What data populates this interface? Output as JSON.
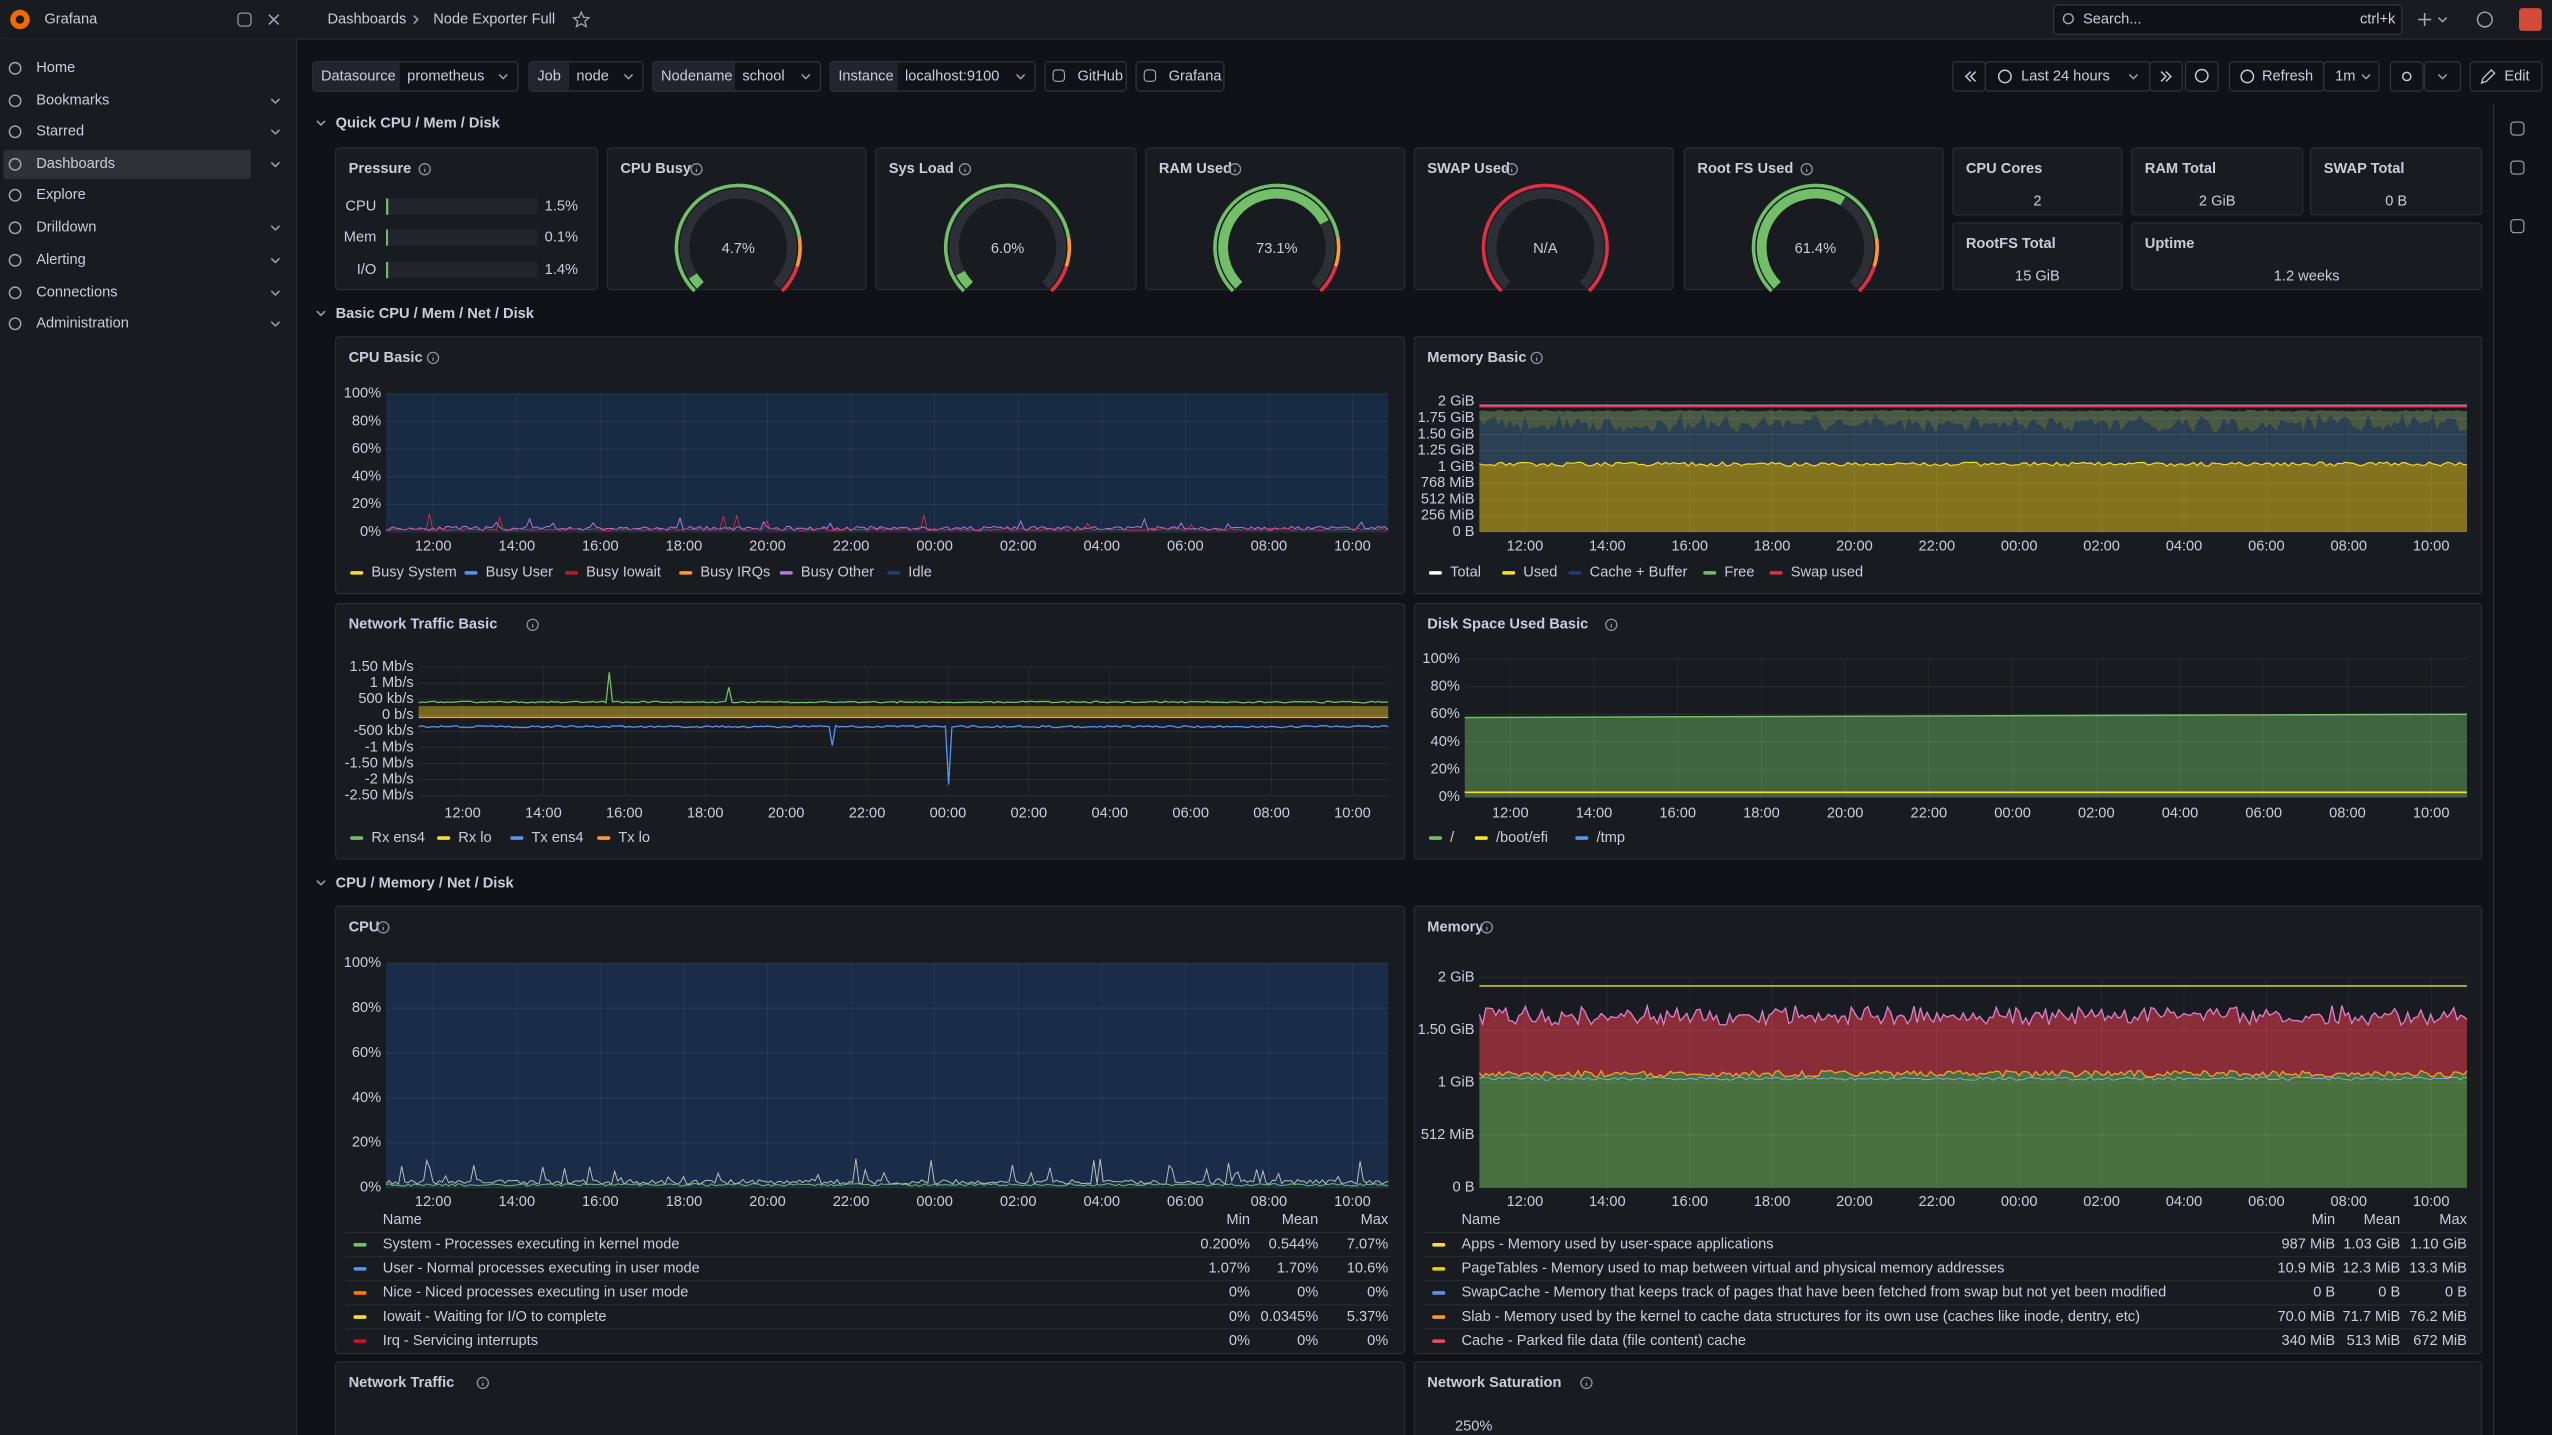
{
  "topbar": {
    "brand": "Grafana",
    "breadcrumb": [
      "Dashboards",
      "Node Exporter Full"
    ],
    "search": "Search...",
    "shortcut": "ctrl+k"
  },
  "sidebar": [
    "Home",
    "Bookmarks",
    "Starred",
    "Dashboards",
    "Explore",
    "Drilldown",
    "Alerting",
    "Connections",
    "Administration"
  ],
  "variables": [
    {
      "label": "Datasource",
      "value": "prometheus"
    },
    {
      "label": "Job",
      "value": "node"
    },
    {
      "label": "Nodename",
      "value": "school"
    },
    {
      "label": "Instance",
      "value": "localhost:9100"
    }
  ],
  "links": [
    "GitHub",
    "Grafana"
  ],
  "controls": {
    "time_range": "Last 24 hours",
    "refresh": "Refresh",
    "interval": "1m",
    "edit": "Edit"
  },
  "rows": [
    "Quick CPU / Mem / Disk",
    "Basic CPU / Mem / Net / Disk",
    "CPU / Memory / Net / Disk"
  ],
  "pressure": {
    "title": "Pressure",
    "bars": [
      {
        "name": "CPU",
        "value": 1.5,
        "label": "1.5%"
      },
      {
        "name": "Mem",
        "value": 0.1,
        "label": "0.1%"
      },
      {
        "name": "I/O",
        "value": 1.4,
        "label": "1.4%"
      }
    ]
  },
  "gauge_range": [
    0,
    100
  ],
  "gauges": [
    {
      "title": "CPU Busy",
      "value": 4.7,
      "label": "4.7%"
    },
    {
      "title": "Sys Load",
      "value": 6.0,
      "label": "6.0%"
    },
    {
      "title": "RAM Used",
      "value": 73.1,
      "label": "73.1%"
    },
    {
      "title": "SWAP Used",
      "value": null,
      "label": "N/A"
    },
    {
      "title": "Root FS Used",
      "value": 61.4,
      "label": "61.4%"
    }
  ],
  "stats": [
    {
      "title": "CPU Cores",
      "value": "2"
    },
    {
      "title": "RAM Total",
      "value": "2 GiB"
    },
    {
      "title": "SWAP Total",
      "value": "0 B"
    },
    {
      "title": "RootFS Total",
      "value": "15 GiB"
    },
    {
      "title": "Uptime",
      "value": "1.2 weeks"
    }
  ],
  "time_axis": [
    "12:00",
    "14:00",
    "16:00",
    "18:00",
    "20:00",
    "22:00",
    "00:00",
    "02:00",
    "04:00",
    "06:00",
    "08:00",
    "10:00"
  ],
  "charts": [
    {
      "title": "CPU Basic",
      "yticks": [
        "100%",
        "80%",
        "60%",
        "40%",
        "20%",
        "0%"
      ],
      "legend": [
        {
          "name": "Busy System",
          "color": "#fade2a"
        },
        {
          "name": "Busy User",
          "color": "#5794f2"
        },
        {
          "name": "Busy Iowait",
          "color": "#c4162a"
        },
        {
          "name": "Busy IRQs",
          "color": "#ff9830"
        },
        {
          "name": "Busy Other",
          "color": "#b877d9"
        },
        {
          "name": "Idle",
          "color": "#1f3f6e"
        }
      ]
    },
    {
      "title": "Memory Basic",
      "yticks": [
        "2 GiB",
        "1.75 GiB",
        "1.50 GiB",
        "1.25 GiB",
        "1 GiB",
        "768 MiB",
        "512 MiB",
        "256 MiB",
        "0 B"
      ],
      "legend": [
        {
          "name": "Total",
          "color": "#ffffff"
        },
        {
          "name": "Used",
          "color": "#fade2a"
        },
        {
          "name": "Cache + Buffer",
          "color": "#1f3f6e"
        },
        {
          "name": "Free",
          "color": "#73bf69"
        },
        {
          "name": "Swap used",
          "color": "#e02f44"
        }
      ]
    },
    {
      "title": "Network Traffic Basic",
      "yticks": [
        "1.50 Mb/s",
        "1 Mb/s",
        "500 kb/s",
        "0 b/s",
        "-500 kb/s",
        "-1 Mb/s",
        "-1.50 Mb/s",
        "-2 Mb/s",
        "-2.50 Mb/s"
      ],
      "legend": [
        {
          "name": "Rx ens4",
          "color": "#73bf69"
        },
        {
          "name": "Rx lo",
          "color": "#fade2a"
        },
        {
          "name": "Tx ens4",
          "color": "#5794f2"
        },
        {
          "name": "Tx lo",
          "color": "#ff9830"
        }
      ]
    },
    {
      "title": "Disk Space Used Basic",
      "yticks": [
        "100%",
        "80%",
        "60%",
        "40%",
        "20%",
        "0%"
      ],
      "legend": [
        {
          "name": "/",
          "color": "#73bf69"
        },
        {
          "name": "/boot/efi",
          "color": "#fade2a"
        },
        {
          "name": "/tmp",
          "color": "#5794f2"
        }
      ]
    },
    {
      "title": "CPU",
      "yticks": [
        "100%",
        "80%",
        "60%",
        "40%",
        "20%",
        "0%"
      ],
      "table": {
        "columns": [
          "Name",
          "Min",
          "Mean",
          "Max"
        ],
        "rows": [
          {
            "name": "System - Processes executing in kernel mode",
            "color": "#73bf69",
            "min": "0.200%",
            "mean": "0.544%",
            "max": "7.07%"
          },
          {
            "name": "User - Normal processes executing in user mode",
            "color": "#5794f2",
            "min": "1.07%",
            "mean": "1.70%",
            "max": "10.6%"
          },
          {
            "name": "Nice - Niced processes executing in user mode",
            "color": "#ff780a",
            "min": "0%",
            "mean": "0%",
            "max": "0%"
          },
          {
            "name": "Iowait - Waiting for I/O to complete",
            "color": "#fade2a",
            "min": "0%",
            "mean": "0.0345%",
            "max": "5.37%"
          },
          {
            "name": "Irq - Servicing interrupts",
            "color": "#c4162a",
            "min": "0%",
            "mean": "0%",
            "max": "0%"
          }
        ]
      }
    },
    {
      "title": "Memory",
      "yticks": [
        "2 GiB",
        "1.50 GiB",
        "1 GiB",
        "512 MiB",
        "0 B"
      ],
      "table": {
        "columns": [
          "Name",
          "Min",
          "Mean",
          "Max"
        ],
        "rows": [
          {
            "name": "Apps - Memory used by user-space applications",
            "color": "#fade2a",
            "min": "987 MiB",
            "mean": "1.03 GiB",
            "max": "1.10 GiB"
          },
          {
            "name": "PageTables - Memory used to map between virtual and physical memory addresses",
            "color": "#f2cc0c",
            "min": "10.9 MiB",
            "mean": "12.3 MiB",
            "max": "13.3 MiB"
          },
          {
            "name": "SwapCache - Memory that keeps track of pages that have been fetched from swap but not yet been modified",
            "color": "#5794f2",
            "min": "0 B",
            "mean": "0 B",
            "max": "0 B"
          },
          {
            "name": "Slab - Memory used by the kernel to cache data structures for its own use (caches like inode, dentry, etc)",
            "color": "#ff9830",
            "min": "70.0 MiB",
            "mean": "71.7 MiB",
            "max": "76.2 MiB"
          },
          {
            "name": "Cache - Parked file data (file content) cache",
            "color": "#f2495c",
            "min": "340 MiB",
            "mean": "513 MiB",
            "max": "672 MiB"
          }
        ]
      }
    },
    {
      "title": "Network Traffic"
    },
    {
      "title": "Network Saturation",
      "yticks": [
        "250%"
      ]
    }
  ]
}
